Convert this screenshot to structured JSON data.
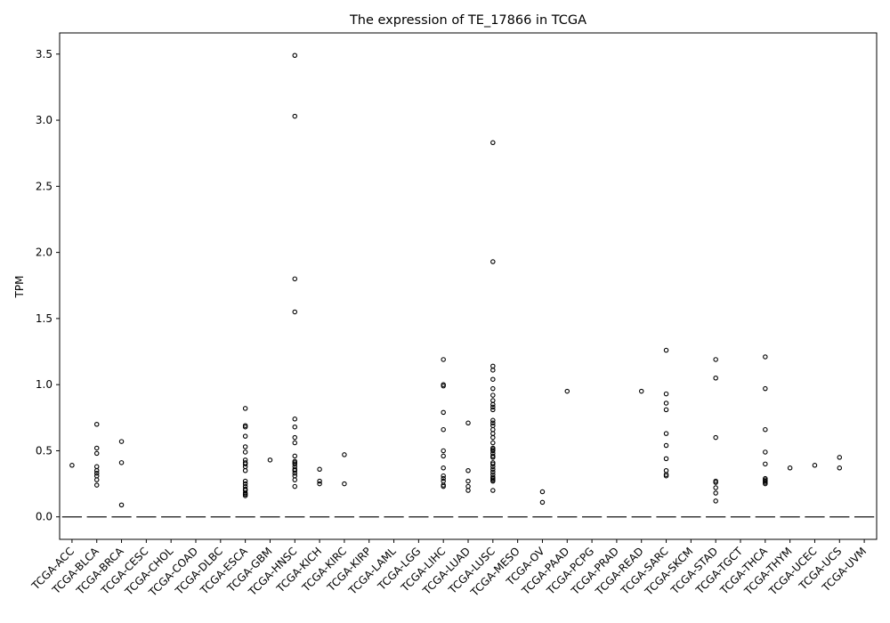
{
  "chart_data": {
    "type": "box",
    "title": "The expression of TE_17866 in TCGA",
    "xlabel": "",
    "ylabel": "TPM",
    "ylim": [
      -0.17,
      3.66
    ],
    "yticks": [
      0.0,
      0.5,
      1.0,
      1.5,
      2.0,
      2.5,
      3.0,
      3.5
    ],
    "ytick_labels": [
      "0.0",
      "0.5",
      "1.0",
      "1.5",
      "2.0",
      "2.5",
      "3.0",
      "3.5"
    ],
    "grid": false,
    "categories": [
      "TCGA-ACC",
      "TCGA-BLCA",
      "TCGA-BRCA",
      "TCGA-CESC",
      "TCGA-CHOL",
      "TCGA-COAD",
      "TCGA-DLBC",
      "TCGA-ESCA",
      "TCGA-GBM",
      "TCGA-HNSC",
      "TCGA-KICH",
      "TCGA-KIRC",
      "TCGA-KIRP",
      "TCGA-LAML",
      "TCGA-LGG",
      "TCGA-LIHC",
      "TCGA-LUAD",
      "TCGA-LUSC",
      "TCGA-MESO",
      "TCGA-OV",
      "TCGA-PAAD",
      "TCGA-PCPG",
      "TCGA-PRAD",
      "TCGA-READ",
      "TCGA-SARC",
      "TCGA-SKCM",
      "TCGA-STAD",
      "TCGA-TGCT",
      "TCGA-THCA",
      "TCGA-THYM",
      "TCGA-UCEC",
      "TCGA-UCS",
      "TCGA-UVM"
    ],
    "median": 0.0,
    "outliers": [
      [
        0.39
      ],
      [
        0.7,
        0.52,
        0.48,
        0.38,
        0.35,
        0.33,
        0.31,
        0.28,
        0.24
      ],
      [
        0.57,
        0.41,
        0.09
      ],
      [],
      [],
      [],
      [],
      [
        0.82,
        0.69,
        0.68,
        0.61,
        0.53,
        0.49,
        0.43,
        0.41,
        0.4,
        0.38,
        0.35,
        0.27,
        0.25,
        0.23,
        0.21,
        0.2,
        0.18,
        0.17,
        0.16
      ],
      [
        0.43
      ],
      [
        3.49,
        3.03,
        1.8,
        1.55,
        0.74,
        0.68,
        0.6,
        0.56,
        0.46,
        0.42,
        0.41,
        0.4,
        0.38,
        0.36,
        0.35,
        0.33,
        0.31,
        0.28,
        0.23
      ],
      [
        0.36,
        0.27,
        0.25
      ],
      [
        0.47,
        0.25
      ],
      [],
      [],
      [],
      [
        1.19,
        1.0,
        0.99,
        0.79,
        0.66,
        0.5,
        0.46,
        0.37,
        0.31,
        0.29,
        0.27,
        0.24,
        0.23
      ],
      [
        0.71,
        0.35,
        0.27,
        0.23,
        0.2
      ],
      [
        2.83,
        1.93,
        1.14,
        1.11,
        1.04,
        0.97,
        0.92,
        0.88,
        0.85,
        0.83,
        0.81,
        0.73,
        0.71,
        0.69,
        0.66,
        0.63,
        0.6,
        0.56,
        0.52,
        0.51,
        0.5,
        0.48,
        0.46,
        0.45,
        0.41,
        0.4,
        0.38,
        0.36,
        0.34,
        0.32,
        0.3,
        0.29,
        0.28,
        0.27,
        0.2
      ],
      [],
      [
        0.19,
        0.11
      ],
      [
        0.95
      ],
      [],
      [],
      [
        0.95
      ],
      [
        1.26,
        0.93,
        0.86,
        0.81,
        0.63,
        0.54,
        0.44,
        0.35,
        0.32,
        0.31
      ],
      [],
      [
        1.19,
        1.05,
        0.6,
        0.27,
        0.26,
        0.22,
        0.18,
        0.12
      ],
      [],
      [
        1.21,
        0.97,
        0.66,
        0.49,
        0.4,
        0.29,
        0.28,
        0.27,
        0.26,
        0.25
      ],
      [
        0.37
      ],
      [
        0.39
      ],
      [
        0.45,
        0.37
      ],
      []
    ]
  }
}
